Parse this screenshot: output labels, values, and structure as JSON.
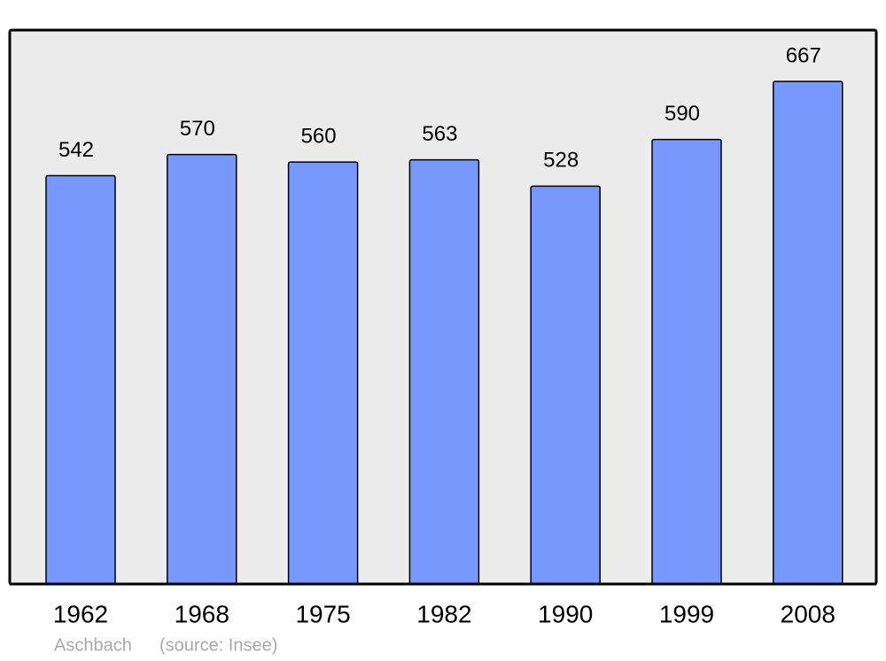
{
  "chart_data": {
    "type": "bar",
    "categories": [
      "1962",
      "1968",
      "1975",
      "1982",
      "1990",
      "1999",
      "2008"
    ],
    "values": [
      542,
      570,
      560,
      563,
      528,
      590,
      667
    ],
    "color": "#7799ff",
    "place": "Aschbach",
    "source": "(source: Insee)"
  }
}
